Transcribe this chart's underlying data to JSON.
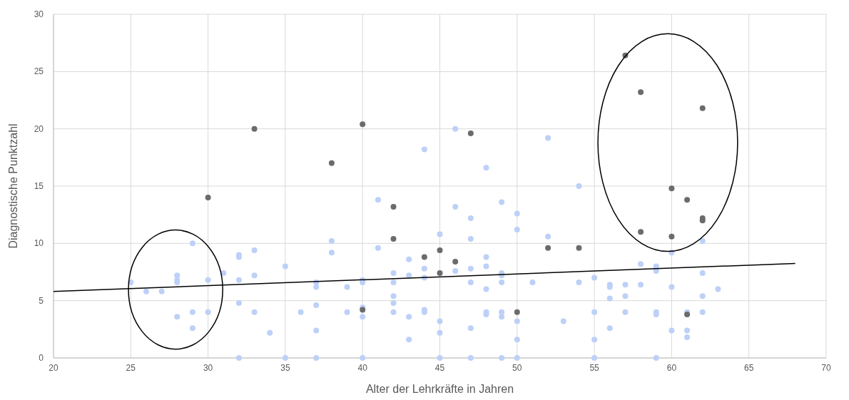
{
  "chart_data": {
    "type": "scatter",
    "xlabel": "Alter der Lehrkräfte in Jahren",
    "ylabel": "Diagnostische Punktzahl",
    "xlim": [
      20,
      70
    ],
    "xticks": [
      20,
      25,
      30,
      35,
      40,
      45,
      50,
      55,
      60,
      65,
      70
    ],
    "ylim": [
      0,
      30
    ],
    "yticks": [
      0,
      5,
      10,
      15,
      20,
      25,
      30
    ],
    "grid": true,
    "marker": "circle",
    "series": [
      {
        "color": "#bdd0f7",
        "x": [
          25,
          26,
          27,
          28,
          28,
          28,
          28,
          29,
          29,
          29,
          30,
          30,
          31,
          32,
          32,
          32,
          32,
          32,
          33,
          33,
          33,
          34,
          35,
          35,
          36,
          37,
          37,
          37,
          37,
          37,
          38,
          38,
          39,
          39,
          40,
          40,
          40,
          40,
          40,
          41,
          41,
          42,
          42,
          42,
          42,
          42,
          43,
          43,
          43,
          43,
          44,
          44,
          44,
          44,
          44,
          45,
          45,
          45,
          45,
          46,
          46,
          46,
          47,
          47,
          47,
          47,
          47,
          47,
          48,
          48,
          48,
          48,
          48,
          48,
          49,
          49,
          49,
          49,
          49,
          49,
          49,
          50,
          50,
          50,
          50,
          50,
          51,
          52,
          52,
          53,
          54,
          54,
          55,
          55,
          55,
          55,
          56,
          56,
          56,
          56,
          57,
          57,
          57,
          58,
          58,
          59,
          59,
          59,
          59,
          59,
          59,
          60,
          60,
          60,
          61,
          61,
          61,
          62,
          62,
          62,
          62,
          63
        ],
        "values": [
          6.6,
          5.8,
          5.8,
          7.2,
          6.8,
          6.6,
          3.6,
          10,
          4,
          2.6,
          6.8,
          4,
          7.4,
          9,
          8.8,
          6.8,
          4.8,
          0,
          9.4,
          7.2,
          4,
          2.2,
          8,
          0,
          4,
          6.6,
          6.2,
          4.6,
          2.4,
          0,
          10.2,
          9.2,
          6.2,
          4,
          6.8,
          6.6,
          4.4,
          3.6,
          0,
          13.8,
          9.6,
          7.4,
          6.6,
          5.4,
          4.8,
          4,
          8.6,
          7.2,
          3.6,
          1.6,
          18.2,
          7.8,
          7,
          4.2,
          4,
          10.8,
          3.2,
          2.2,
          0,
          20,
          13.2,
          7.6,
          12.2,
          10.4,
          7.8,
          6.6,
          2.6,
          0,
          16.6,
          8.8,
          8,
          6,
          4,
          3.8,
          13.6,
          7.4,
          7.2,
          6.6,
          4,
          3.6,
          0,
          12.6,
          11.2,
          3.2,
          1.6,
          0,
          6.6,
          19.2,
          10.6,
          3.2,
          15,
          6.6,
          7,
          4,
          1.6,
          0,
          6.4,
          6.2,
          5.2,
          2.6,
          6.4,
          5.4,
          4,
          8.2,
          6.4,
          8,
          7.8,
          7.6,
          4,
          3.8,
          0,
          9.2,
          6.2,
          2.4,
          4,
          2.4,
          1.8,
          10.2,
          7.4,
          5.4,
          4,
          6
        ]
      },
      {
        "color": "#6b6b6b",
        "x": [
          30,
          33,
          38,
          40,
          40,
          42,
          42,
          44,
          45,
          45,
          46,
          47,
          50,
          52,
          54,
          57,
          58,
          58,
          60,
          60,
          61,
          61,
          62,
          62,
          62
        ],
        "values": [
          14,
          20,
          17,
          20.4,
          4.2,
          13.2,
          10.4,
          8.8,
          9.4,
          7.4,
          8.4,
          19.6,
          4,
          9.6,
          9.6,
          26.4,
          23.2,
          11,
          14.8,
          10.6,
          13.8,
          3.8,
          21.8,
          12.2,
          12
        ]
      },
      {
        "type": "line",
        "color": "#000000",
        "marker": "none",
        "x": [
          20,
          68
        ],
        "values": [
          5.8,
          8.25
        ]
      }
    ]
  }
}
